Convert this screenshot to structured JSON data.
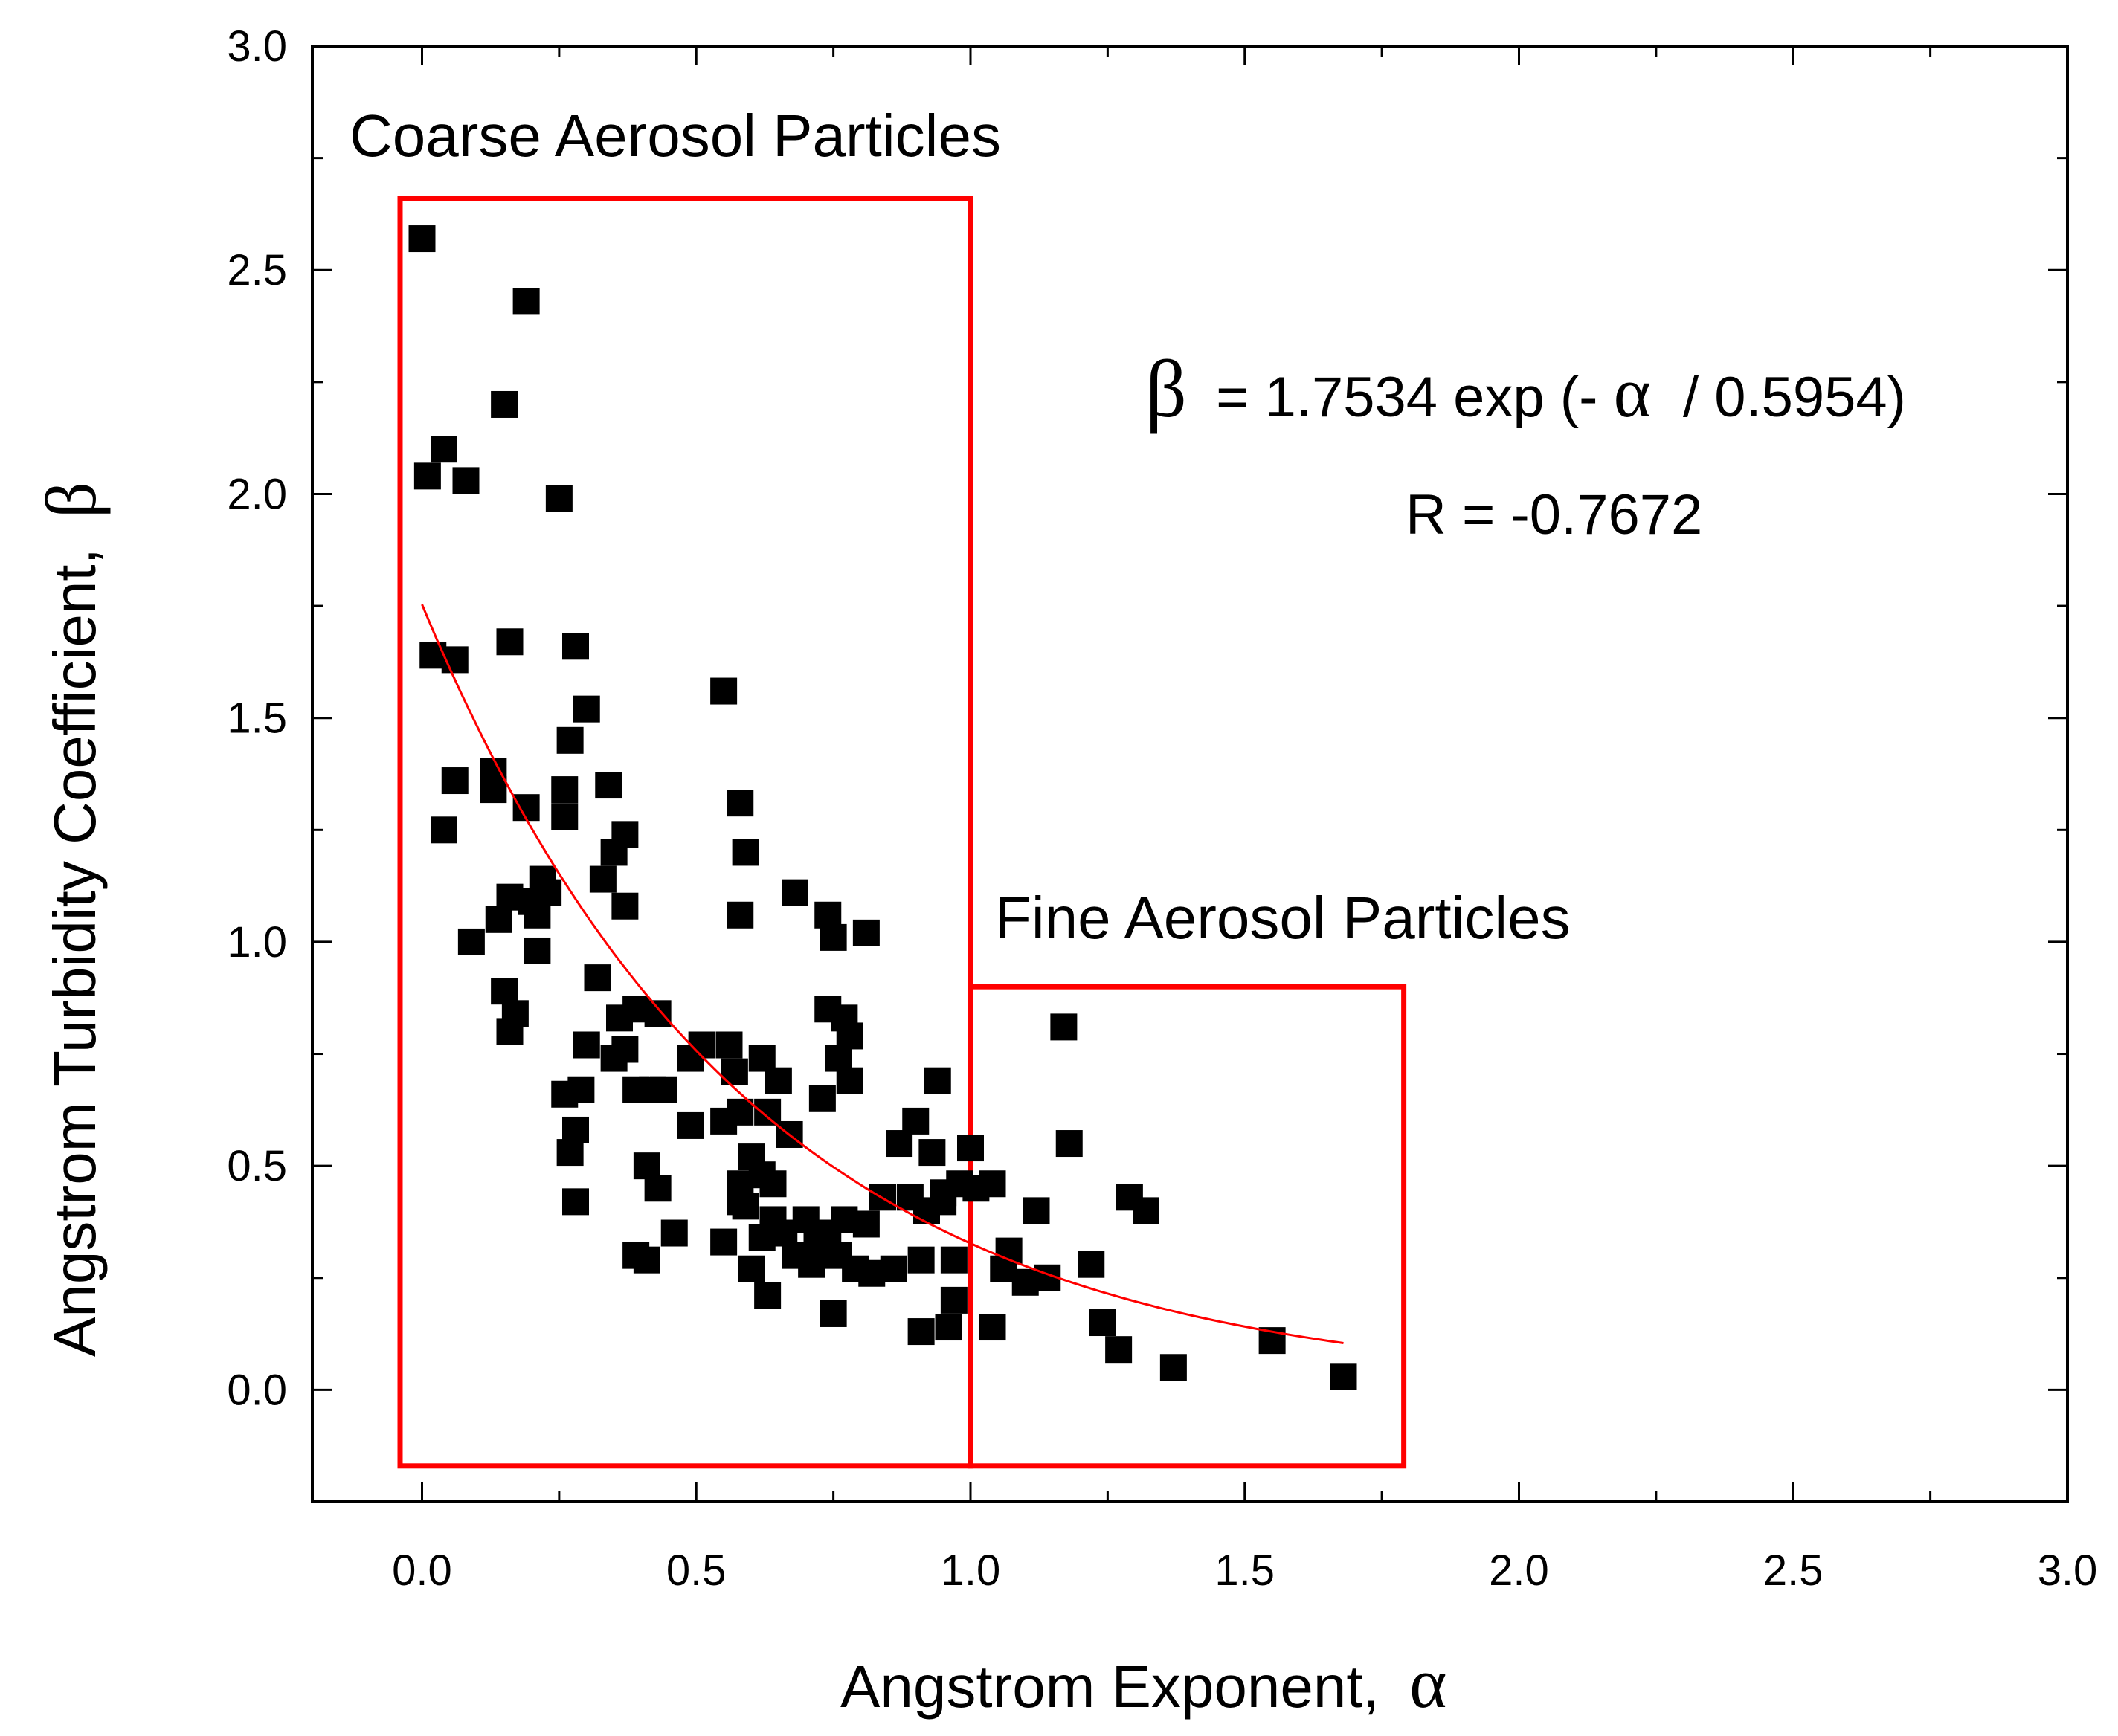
{
  "chart_data": {
    "type": "scatter",
    "xlabel": "Angstrom Exponent,",
    "xlabel_symbol": "α",
    "ylabel": "Angstrom Turbidity Coefficient,",
    "ylabel_symbol": "β",
    "xlim": [
      -0.2,
      3.0
    ],
    "ylim": [
      -0.25,
      3.0
    ],
    "x_ticks": [
      0.0,
      0.5,
      1.0,
      1.5,
      2.0,
      2.5,
      3.0
    ],
    "x_tick_labels": [
      "0.0",
      "0.5",
      "1.0",
      "1.5",
      "2.0",
      "2.5",
      "3.0"
    ],
    "y_ticks": [
      0.0,
      0.5,
      1.0,
      1.5,
      2.0,
      2.5,
      3.0
    ],
    "y_tick_labels": [
      "0.0",
      "0.5",
      "1.0",
      "1.5",
      "2.0",
      "2.5",
      "3.0"
    ],
    "grid": false,
    "series": [
      {
        "name": "measurements",
        "marker": "square",
        "color": "#000000",
        "points": [
          [
            0.0,
            2.57
          ],
          [
            0.19,
            2.43
          ],
          [
            0.15,
            2.2
          ],
          [
            0.04,
            2.1
          ],
          [
            0.01,
            2.04
          ],
          [
            0.08,
            2.03
          ],
          [
            0.25,
            1.99
          ],
          [
            0.02,
            1.64
          ],
          [
            0.06,
            1.63
          ],
          [
            0.16,
            1.67
          ],
          [
            0.28,
            1.66
          ],
          [
            0.55,
            1.56
          ],
          [
            0.3,
            1.52
          ],
          [
            0.27,
            1.45
          ],
          [
            0.06,
            1.36
          ],
          [
            0.13,
            1.38
          ],
          [
            0.13,
            1.34
          ],
          [
            0.26,
            1.34
          ],
          [
            0.34,
            1.35
          ],
          [
            0.19,
            1.3
          ],
          [
            0.26,
            1.28
          ],
          [
            0.04,
            1.25
          ],
          [
            0.37,
            1.24
          ],
          [
            0.58,
            1.31
          ],
          [
            0.59,
            1.2
          ],
          [
            0.35,
            1.2
          ],
          [
            0.33,
            1.14
          ],
          [
            0.22,
            1.14
          ],
          [
            0.23,
            1.11
          ],
          [
            0.2,
            1.09
          ],
          [
            0.16,
            1.1
          ],
          [
            0.14,
            1.05
          ],
          [
            0.21,
            1.06
          ],
          [
            0.37,
            1.08
          ],
          [
            0.68,
            1.11
          ],
          [
            0.58,
            1.06
          ],
          [
            0.74,
            1.06
          ],
          [
            0.75,
            1.01
          ],
          [
            0.81,
            1.02
          ],
          [
            0.09,
            1.0
          ],
          [
            0.21,
            0.98
          ],
          [
            0.32,
            0.92
          ],
          [
            0.15,
            0.89
          ],
          [
            0.17,
            0.84
          ],
          [
            0.16,
            0.8
          ],
          [
            0.74,
            0.85
          ],
          [
            0.36,
            0.83
          ],
          [
            0.39,
            0.85
          ],
          [
            0.43,
            0.84
          ],
          [
            0.77,
            0.83
          ],
          [
            0.78,
            0.79
          ],
          [
            0.76,
            0.74
          ],
          [
            0.3,
            0.77
          ],
          [
            0.37,
            0.76
          ],
          [
            0.51,
            0.77
          ],
          [
            0.56,
            0.77
          ],
          [
            0.62,
            0.74
          ],
          [
            0.35,
            0.74
          ],
          [
            0.49,
            0.74
          ],
          [
            0.57,
            0.71
          ],
          [
            0.65,
            0.69
          ],
          [
            0.78,
            0.69
          ],
          [
            0.94,
            0.69
          ],
          [
            0.26,
            0.66
          ],
          [
            0.29,
            0.67
          ],
          [
            0.39,
            0.67
          ],
          [
            0.42,
            0.67
          ],
          [
            0.44,
            0.67
          ],
          [
            0.73,
            0.65
          ],
          [
            0.55,
            0.6
          ],
          [
            0.58,
            0.62
          ],
          [
            0.63,
            0.62
          ],
          [
            0.49,
            0.59
          ],
          [
            0.67,
            0.57
          ],
          [
            0.28,
            0.58
          ],
          [
            0.9,
            0.6
          ],
          [
            0.87,
            0.55
          ],
          [
            0.93,
            0.53
          ],
          [
            1.0,
            0.54
          ],
          [
            1.18,
            0.55
          ],
          [
            0.27,
            0.53
          ],
          [
            0.6,
            0.52
          ],
          [
            0.62,
            0.48
          ],
          [
            0.41,
            0.5
          ],
          [
            0.58,
            0.46
          ],
          [
            0.64,
            0.46
          ],
          [
            0.43,
            0.45
          ],
          [
            0.58,
            0.42
          ],
          [
            0.59,
            0.41
          ],
          [
            0.28,
            0.42
          ],
          [
            0.84,
            0.43
          ],
          [
            0.89,
            0.43
          ],
          [
            0.95,
            0.44
          ],
          [
            0.98,
            0.46
          ],
          [
            1.01,
            0.45
          ],
          [
            1.04,
            0.46
          ],
          [
            1.12,
            0.4
          ],
          [
            1.29,
            0.43
          ],
          [
            1.32,
            0.4
          ],
          [
            0.64,
            0.38
          ],
          [
            0.7,
            0.38
          ],
          [
            0.77,
            0.38
          ],
          [
            0.81,
            0.37
          ],
          [
            0.92,
            0.4
          ],
          [
            0.95,
            0.42
          ],
          [
            0.62,
            0.34
          ],
          [
            0.66,
            0.35
          ],
          [
            0.72,
            0.33
          ],
          [
            0.46,
            0.35
          ],
          [
            0.55,
            0.33
          ],
          [
            0.74,
            0.35
          ],
          [
            0.39,
            0.3
          ],
          [
            0.41,
            0.29
          ],
          [
            0.68,
            0.3
          ],
          [
            0.71,
            0.28
          ],
          [
            0.76,
            0.3
          ],
          [
            0.79,
            0.27
          ],
          [
            0.82,
            0.26
          ],
          [
            0.86,
            0.27
          ],
          [
            0.91,
            0.29
          ],
          [
            0.97,
            0.29
          ],
          [
            1.07,
            0.31
          ],
          [
            1.06,
            0.27
          ],
          [
            1.1,
            0.24
          ],
          [
            1.14,
            0.25
          ],
          [
            1.22,
            0.28
          ],
          [
            0.6,
            0.27
          ],
          [
            0.63,
            0.21
          ],
          [
            0.75,
            0.17
          ],
          [
            0.91,
            0.13
          ],
          [
            0.96,
            0.14
          ],
          [
            0.97,
            0.2
          ],
          [
            1.04,
            0.14
          ],
          [
            1.17,
            0.81
          ],
          [
            1.24,
            0.15
          ],
          [
            1.27,
            0.09
          ],
          [
            1.37,
            0.05
          ],
          [
            1.55,
            0.11
          ],
          [
            1.68,
            0.03
          ]
        ]
      }
    ],
    "fit": {
      "formula": "β = 1.7534 exp(-α / 0.5954)",
      "a": 1.7534,
      "t": 0.5954,
      "x_range": [
        0.0,
        1.68
      ],
      "color": "#ff0000"
    },
    "regions": [
      {
        "label": "Coarse Aerosol Particles",
        "x_range": [
          -0.04,
          1.0
        ],
        "y_range": [
          -0.17,
          2.66
        ],
        "color": "#ff0000"
      },
      {
        "label": "Fine Aerosol Particles",
        "x_range": [
          1.0,
          1.79
        ],
        "y_range": [
          -0.17,
          0.9
        ],
        "color": "#ff0000"
      }
    ],
    "annotations": {
      "equation_symbol": "β",
      "equation_rest": "= 1.7534 exp (-",
      "equation_alpha": "α",
      "equation_tail": "/ 0.5954)",
      "correlation": "R = -0.7672"
    }
  }
}
